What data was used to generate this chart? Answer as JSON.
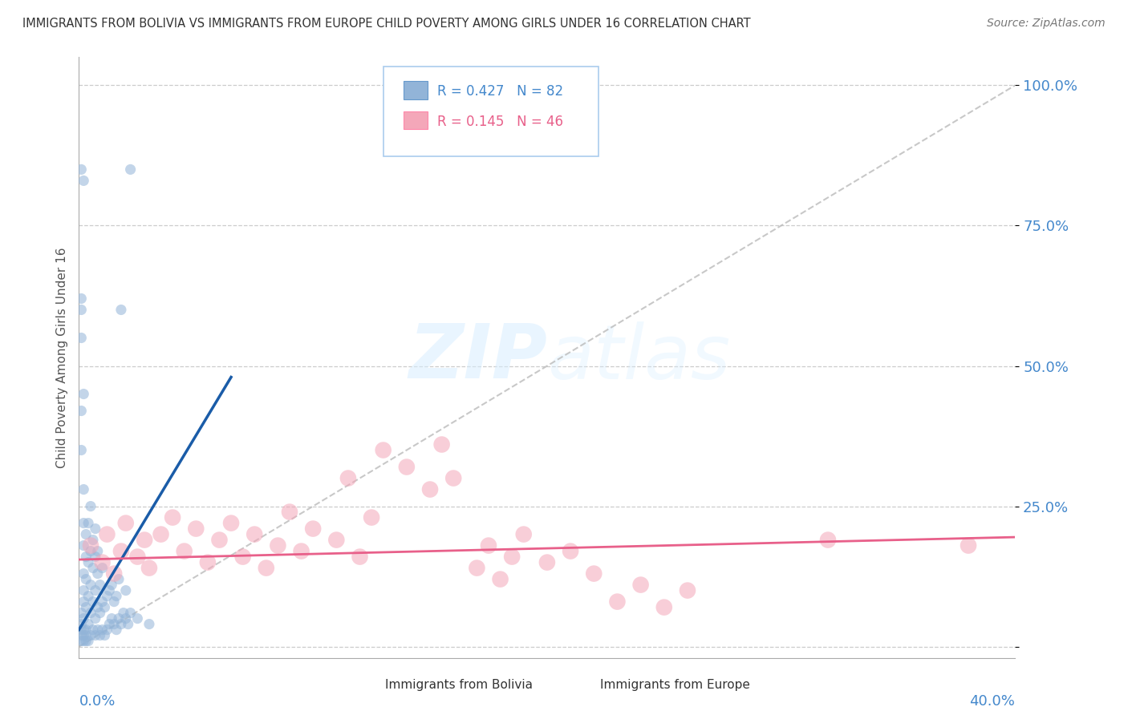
{
  "title": "IMMIGRANTS FROM BOLIVIA VS IMMIGRANTS FROM EUROPE CHILD POVERTY AMONG GIRLS UNDER 16 CORRELATION CHART",
  "source": "Source: ZipAtlas.com",
  "ylabel": "Child Poverty Among Girls Under 16",
  "xlim": [
    0.0,
    0.4
  ],
  "ylim": [
    -0.02,
    1.05
  ],
  "y_ticks": [
    0.0,
    0.25,
    0.5,
    0.75,
    1.0
  ],
  "y_tick_labels": [
    "",
    "25.0%",
    "50.0%",
    "75.0%",
    "100.0%"
  ],
  "legend_r1": "R = 0.427",
  "legend_n1": "N = 82",
  "legend_r2": "R = 0.145",
  "legend_n2": "N = 46",
  "blue_color": "#92B4D8",
  "pink_color": "#F4A7B9",
  "blue_line_color": "#1A5CA8",
  "pink_line_color": "#E8608A",
  "bolivia_trendline": [
    [
      0.0,
      0.03
    ],
    [
      0.065,
      0.48
    ]
  ],
  "europe_trendline": [
    [
      0.0,
      0.155
    ],
    [
      0.4,
      0.195
    ]
  ],
  "diag_line_x": [
    0.0,
    0.4
  ],
  "diag_line_y": [
    0.0,
    1.0
  ],
  "bolivia_scatter": [
    [
      0.001,
      0.02
    ],
    [
      0.001,
      0.04
    ],
    [
      0.001,
      0.01
    ],
    [
      0.001,
      0.06
    ],
    [
      0.001,
      0.03
    ],
    [
      0.002,
      0.02
    ],
    [
      0.002,
      0.03
    ],
    [
      0.002,
      0.01
    ],
    [
      0.002,
      0.05
    ],
    [
      0.002,
      0.08
    ],
    [
      0.002,
      0.1
    ],
    [
      0.002,
      0.13
    ],
    [
      0.002,
      0.18
    ],
    [
      0.002,
      0.22
    ],
    [
      0.002,
      0.28
    ],
    [
      0.003,
      0.02
    ],
    [
      0.003,
      0.03
    ],
    [
      0.003,
      0.01
    ],
    [
      0.003,
      0.07
    ],
    [
      0.003,
      0.12
    ],
    [
      0.003,
      0.16
    ],
    [
      0.003,
      0.2
    ],
    [
      0.004,
      0.01
    ],
    [
      0.004,
      0.04
    ],
    [
      0.004,
      0.09
    ],
    [
      0.004,
      0.15
    ],
    [
      0.004,
      0.22
    ],
    [
      0.005,
      0.02
    ],
    [
      0.005,
      0.06
    ],
    [
      0.005,
      0.11
    ],
    [
      0.005,
      0.17
    ],
    [
      0.005,
      0.25
    ],
    [
      0.006,
      0.03
    ],
    [
      0.006,
      0.08
    ],
    [
      0.006,
      0.14
    ],
    [
      0.006,
      0.19
    ],
    [
      0.007,
      0.02
    ],
    [
      0.007,
      0.05
    ],
    [
      0.007,
      0.1
    ],
    [
      0.007,
      0.16
    ],
    [
      0.007,
      0.21
    ],
    [
      0.008,
      0.03
    ],
    [
      0.008,
      0.07
    ],
    [
      0.008,
      0.13
    ],
    [
      0.008,
      0.17
    ],
    [
      0.009,
      0.02
    ],
    [
      0.009,
      0.06
    ],
    [
      0.009,
      0.11
    ],
    [
      0.01,
      0.03
    ],
    [
      0.01,
      0.08
    ],
    [
      0.01,
      0.14
    ],
    [
      0.011,
      0.02
    ],
    [
      0.011,
      0.07
    ],
    [
      0.012,
      0.03
    ],
    [
      0.012,
      0.09
    ],
    [
      0.013,
      0.04
    ],
    [
      0.013,
      0.1
    ],
    [
      0.014,
      0.05
    ],
    [
      0.014,
      0.11
    ],
    [
      0.015,
      0.04
    ],
    [
      0.015,
      0.08
    ],
    [
      0.016,
      0.03
    ],
    [
      0.016,
      0.09
    ],
    [
      0.017,
      0.05
    ],
    [
      0.017,
      0.12
    ],
    [
      0.018,
      0.04
    ],
    [
      0.019,
      0.06
    ],
    [
      0.02,
      0.05
    ],
    [
      0.02,
      0.1
    ],
    [
      0.021,
      0.04
    ],
    [
      0.022,
      0.06
    ],
    [
      0.025,
      0.05
    ],
    [
      0.03,
      0.04
    ],
    [
      0.001,
      0.35
    ],
    [
      0.001,
      0.42
    ],
    [
      0.002,
      0.45
    ],
    [
      0.001,
      0.55
    ],
    [
      0.001,
      0.6
    ],
    [
      0.001,
      0.62
    ],
    [
      0.018,
      0.6
    ],
    [
      0.001,
      0.85
    ],
    [
      0.002,
      0.83
    ],
    [
      0.022,
      0.85
    ]
  ],
  "europe_scatter": [
    [
      0.005,
      0.18
    ],
    [
      0.01,
      0.15
    ],
    [
      0.012,
      0.2
    ],
    [
      0.015,
      0.13
    ],
    [
      0.018,
      0.17
    ],
    [
      0.02,
      0.22
    ],
    [
      0.025,
      0.16
    ],
    [
      0.028,
      0.19
    ],
    [
      0.03,
      0.14
    ],
    [
      0.035,
      0.2
    ],
    [
      0.04,
      0.23
    ],
    [
      0.045,
      0.17
    ],
    [
      0.05,
      0.21
    ],
    [
      0.055,
      0.15
    ],
    [
      0.06,
      0.19
    ],
    [
      0.065,
      0.22
    ],
    [
      0.07,
      0.16
    ],
    [
      0.075,
      0.2
    ],
    [
      0.08,
      0.14
    ],
    [
      0.085,
      0.18
    ],
    [
      0.09,
      0.24
    ],
    [
      0.095,
      0.17
    ],
    [
      0.1,
      0.21
    ],
    [
      0.11,
      0.19
    ],
    [
      0.115,
      0.3
    ],
    [
      0.12,
      0.16
    ],
    [
      0.125,
      0.23
    ],
    [
      0.13,
      0.35
    ],
    [
      0.14,
      0.32
    ],
    [
      0.15,
      0.28
    ],
    [
      0.155,
      0.36
    ],
    [
      0.16,
      0.3
    ],
    [
      0.17,
      0.14
    ],
    [
      0.175,
      0.18
    ],
    [
      0.18,
      0.12
    ],
    [
      0.185,
      0.16
    ],
    [
      0.19,
      0.2
    ],
    [
      0.2,
      0.15
    ],
    [
      0.21,
      0.17
    ],
    [
      0.22,
      0.13
    ],
    [
      0.23,
      0.08
    ],
    [
      0.24,
      0.11
    ],
    [
      0.25,
      0.07
    ],
    [
      0.26,
      0.1
    ],
    [
      0.32,
      0.19
    ],
    [
      0.38,
      0.18
    ]
  ]
}
